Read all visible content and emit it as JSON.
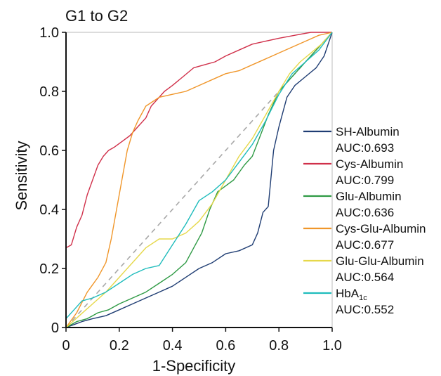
{
  "chart_data": {
    "type": "line",
    "title": "G1 to G2",
    "xlabel": "1-Specificity",
    "ylabel": "Sensitivity",
    "xlim": [
      0,
      1
    ],
    "ylim": [
      0,
      1
    ],
    "xticks": [
      "0",
      "0.2",
      "0.4",
      "0.6",
      "0.8",
      "1.0"
    ],
    "yticks": [
      "0",
      "0.2",
      "0.4",
      "0.6",
      "0.8",
      "1.0"
    ],
    "grid": false,
    "reference_line": {
      "style": "dashed",
      "color": "#a8a8a8",
      "x": [
        0,
        1
      ],
      "y": [
        0,
        1
      ]
    },
    "legend_position": "right",
    "series": [
      {
        "name": "SH-Albumin",
        "auc_label": "AUC:0.693",
        "color": "#1f3d73",
        "x": [
          0,
          0.03,
          0.06,
          0.1,
          0.15,
          0.2,
          0.25,
          0.3,
          0.35,
          0.4,
          0.45,
          0.5,
          0.55,
          0.6,
          0.65,
          0.7,
          0.72,
          0.74,
          0.76,
          0.78,
          0.8,
          0.83,
          0.86,
          0.9,
          0.94,
          0.97,
          1.0
        ],
        "y": [
          0,
          0.01,
          0.02,
          0.03,
          0.04,
          0.06,
          0.08,
          0.1,
          0.12,
          0.14,
          0.17,
          0.2,
          0.22,
          0.25,
          0.26,
          0.28,
          0.32,
          0.39,
          0.41,
          0.6,
          0.68,
          0.78,
          0.82,
          0.85,
          0.88,
          0.92,
          1.0
        ]
      },
      {
        "name": "Cys-Albumin",
        "auc_label": "AUC:0.799",
        "color": "#d0304a",
        "x": [
          0,
          0.02,
          0.04,
          0.06,
          0.08,
          0.1,
          0.12,
          0.14,
          0.16,
          0.18,
          0.21,
          0.24,
          0.27,
          0.3,
          0.32,
          0.34,
          0.37,
          0.4,
          0.44,
          0.48,
          0.52,
          0.56,
          0.6,
          0.65,
          0.7,
          0.75,
          0.8,
          0.86,
          0.92,
          1.0
        ],
        "y": [
          0.27,
          0.28,
          0.34,
          0.38,
          0.45,
          0.5,
          0.55,
          0.58,
          0.6,
          0.61,
          0.63,
          0.65,
          0.68,
          0.71,
          0.75,
          0.77,
          0.8,
          0.82,
          0.85,
          0.88,
          0.89,
          0.9,
          0.92,
          0.94,
          0.96,
          0.97,
          0.98,
          0.99,
          1.0,
          1.0
        ]
      },
      {
        "name": "Glu-Albumin",
        "auc_label": "AUC:0.636",
        "color": "#2e9a44",
        "x": [
          0,
          0.04,
          0.08,
          0.12,
          0.16,
          0.2,
          0.25,
          0.3,
          0.35,
          0.4,
          0.45,
          0.48,
          0.51,
          0.54,
          0.57,
          0.6,
          0.63,
          0.67,
          0.7,
          0.73,
          0.76,
          0.8,
          0.85,
          0.9,
          0.95,
          1.0
        ],
        "y": [
          0,
          0.02,
          0.03,
          0.05,
          0.06,
          0.08,
          0.1,
          0.12,
          0.15,
          0.18,
          0.22,
          0.27,
          0.32,
          0.4,
          0.46,
          0.48,
          0.5,
          0.55,
          0.58,
          0.65,
          0.72,
          0.8,
          0.85,
          0.9,
          0.95,
          1.0
        ]
      },
      {
        "name": "Cys-Glu-Albumin",
        "auc_label": "AUC:0.677",
        "color": "#f0962a",
        "x": [
          0,
          0.04,
          0.08,
          0.12,
          0.15,
          0.17,
          0.19,
          0.21,
          0.23,
          0.25,
          0.27,
          0.3,
          0.35,
          0.4,
          0.45,
          0.5,
          0.55,
          0.6,
          0.65,
          0.7,
          0.75,
          0.8,
          0.85,
          0.9,
          0.95,
          1.0
        ],
        "y": [
          0,
          0.05,
          0.12,
          0.17,
          0.22,
          0.3,
          0.4,
          0.5,
          0.6,
          0.66,
          0.7,
          0.75,
          0.78,
          0.79,
          0.8,
          0.82,
          0.84,
          0.86,
          0.87,
          0.89,
          0.91,
          0.93,
          0.95,
          0.97,
          0.99,
          1.0
        ]
      },
      {
        "name": "Glu-Glu-Albumin",
        "auc_label": "AUC:0.564",
        "color": "#e6d84a",
        "x": [
          0,
          0.05,
          0.1,
          0.15,
          0.2,
          0.25,
          0.3,
          0.35,
          0.4,
          0.45,
          0.5,
          0.55,
          0.6,
          0.65,
          0.7,
          0.75,
          0.8,
          0.84,
          0.88,
          0.92,
          0.96,
          1.0
        ],
        "y": [
          0,
          0.04,
          0.08,
          0.12,
          0.17,
          0.22,
          0.27,
          0.3,
          0.3,
          0.32,
          0.36,
          0.42,
          0.5,
          0.58,
          0.64,
          0.72,
          0.8,
          0.86,
          0.9,
          0.93,
          0.96,
          1.0
        ]
      },
      {
        "name": "HbA1c",
        "name_main": "HbA",
        "name_sub": "1c",
        "auc_label": "AUC:0.552",
        "color": "#1fbcbc",
        "x": [
          0,
          0.03,
          0.06,
          0.1,
          0.15,
          0.2,
          0.25,
          0.3,
          0.35,
          0.4,
          0.45,
          0.5,
          0.55,
          0.6,
          0.65,
          0.7,
          0.75,
          0.8,
          0.85,
          0.9,
          0.95,
          1.0
        ],
        "y": [
          0.03,
          0.06,
          0.09,
          0.1,
          0.12,
          0.15,
          0.18,
          0.2,
          0.21,
          0.28,
          0.35,
          0.43,
          0.46,
          0.5,
          0.56,
          0.62,
          0.7,
          0.79,
          0.86,
          0.9,
          0.94,
          1.0
        ]
      }
    ]
  }
}
